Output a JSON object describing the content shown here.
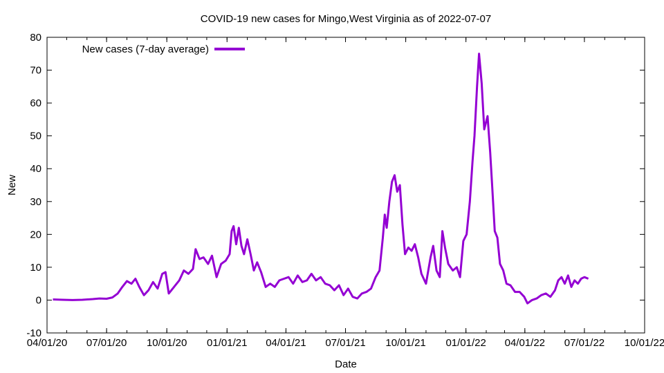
{
  "chart_data": {
    "type": "line",
    "title": "COVID-19 new cases for Mingo,West Virginia as of 2022-07-07",
    "xlabel": "Date",
    "ylabel": "New",
    "xlim": [
      "2020-04-01",
      "2022-10-01"
    ],
    "ylim": [
      -10,
      80
    ],
    "grid": false,
    "legend": "top-left",
    "x_ticks": [
      "04/01/20",
      "07/01/20",
      "10/01/20",
      "01/01/21",
      "04/01/21",
      "07/01/21",
      "10/01/21",
      "01/01/22",
      "04/01/22",
      "07/01/22",
      "10/01/22"
    ],
    "x_tick_dates": [
      "2020-04-01",
      "2020-07-01",
      "2020-10-01",
      "2021-01-01",
      "2021-04-01",
      "2021-07-01",
      "2021-10-01",
      "2022-01-01",
      "2022-04-01",
      "2022-07-01",
      "2022-10-01"
    ],
    "y_ticks": [
      -10,
      0,
      10,
      20,
      30,
      40,
      50,
      60,
      70,
      80
    ],
    "series": [
      {
        "name": "New cases (7-day average)",
        "color": "#9400d3",
        "points": [
          [
            "2020-04-10",
            0.2
          ],
          [
            "2020-04-25",
            0.1
          ],
          [
            "2020-05-10",
            0.0
          ],
          [
            "2020-05-25",
            0.1
          ],
          [
            "2020-06-10",
            0.3
          ],
          [
            "2020-06-20",
            0.5
          ],
          [
            "2020-07-01",
            0.4
          ],
          [
            "2020-07-10",
            0.8
          ],
          [
            "2020-07-18",
            2.0
          ],
          [
            "2020-07-25",
            4.0
          ],
          [
            "2020-08-01",
            5.8
          ],
          [
            "2020-08-08",
            5.0
          ],
          [
            "2020-08-14",
            6.5
          ],
          [
            "2020-08-20",
            4.0
          ],
          [
            "2020-08-27",
            1.5
          ],
          [
            "2020-09-03",
            3.0
          ],
          [
            "2020-09-10",
            5.5
          ],
          [
            "2020-09-17",
            3.5
          ],
          [
            "2020-09-24",
            8.0
          ],
          [
            "2020-09-29",
            8.5
          ],
          [
            "2020-10-04",
            2.0
          ],
          [
            "2020-10-12",
            4.0
          ],
          [
            "2020-10-20",
            6.0
          ],
          [
            "2020-10-27",
            9.0
          ],
          [
            "2020-11-03",
            8.0
          ],
          [
            "2020-11-10",
            9.5
          ],
          [
            "2020-11-14",
            15.5
          ],
          [
            "2020-11-20",
            12.5
          ],
          [
            "2020-11-26",
            13.0
          ],
          [
            "2020-12-03",
            11.0
          ],
          [
            "2020-12-09",
            13.5
          ],
          [
            "2020-12-16",
            7.0
          ],
          [
            "2020-12-23",
            11.0
          ],
          [
            "2020-12-30",
            12.0
          ],
          [
            "2021-01-05",
            14.0
          ],
          [
            "2021-01-08",
            21.0
          ],
          [
            "2021-01-11",
            22.5
          ],
          [
            "2021-01-15",
            17.0
          ],
          [
            "2021-01-19",
            22.0
          ],
          [
            "2021-01-23",
            16.5
          ],
          [
            "2021-01-27",
            14.0
          ],
          [
            "2021-02-01",
            18.5
          ],
          [
            "2021-02-06",
            14.0
          ],
          [
            "2021-02-11",
            9.0
          ],
          [
            "2021-02-16",
            11.5
          ],
          [
            "2021-02-22",
            8.5
          ],
          [
            "2021-03-01",
            4.0
          ],
          [
            "2021-03-08",
            5.0
          ],
          [
            "2021-03-15",
            4.0
          ],
          [
            "2021-03-22",
            6.0
          ],
          [
            "2021-03-29",
            6.5
          ],
          [
            "2021-04-05",
            7.0
          ],
          [
            "2021-04-12",
            5.0
          ],
          [
            "2021-04-19",
            7.5
          ],
          [
            "2021-04-26",
            5.5
          ],
          [
            "2021-05-03",
            6.0
          ],
          [
            "2021-05-10",
            8.0
          ],
          [
            "2021-05-17",
            6.0
          ],
          [
            "2021-05-24",
            7.0
          ],
          [
            "2021-05-31",
            5.0
          ],
          [
            "2021-06-07",
            4.5
          ],
          [
            "2021-06-14",
            3.0
          ],
          [
            "2021-06-21",
            4.5
          ],
          [
            "2021-06-28",
            1.5
          ],
          [
            "2021-07-05",
            3.5
          ],
          [
            "2021-07-12",
            1.0
          ],
          [
            "2021-07-19",
            0.5
          ],
          [
            "2021-07-26",
            2.0
          ],
          [
            "2021-08-02",
            2.5
          ],
          [
            "2021-08-09",
            3.5
          ],
          [
            "2021-08-16",
            7.0
          ],
          [
            "2021-08-22",
            9.0
          ],
          [
            "2021-08-27",
            19.0
          ],
          [
            "2021-08-30",
            26.0
          ],
          [
            "2021-09-02",
            22.0
          ],
          [
            "2021-09-06",
            30.0
          ],
          [
            "2021-09-10",
            36.0
          ],
          [
            "2021-09-14",
            38.0
          ],
          [
            "2021-09-18",
            33.0
          ],
          [
            "2021-09-22",
            35.0
          ],
          [
            "2021-09-26",
            23.0
          ],
          [
            "2021-09-30",
            14.0
          ],
          [
            "2021-10-05",
            16.0
          ],
          [
            "2021-10-10",
            15.0
          ],
          [
            "2021-10-15",
            17.0
          ],
          [
            "2021-10-20",
            13.0
          ],
          [
            "2021-10-25",
            8.0
          ],
          [
            "2021-11-01",
            5.0
          ],
          [
            "2021-11-08",
            13.0
          ],
          [
            "2021-11-12",
            16.5
          ],
          [
            "2021-11-17",
            9.0
          ],
          [
            "2021-11-22",
            7.0
          ],
          [
            "2021-11-26",
            21.0
          ],
          [
            "2021-11-30",
            16.0
          ],
          [
            "2021-12-05",
            11.0
          ],
          [
            "2021-12-12",
            9.0
          ],
          [
            "2021-12-18",
            10.0
          ],
          [
            "2021-12-23",
            7.0
          ],
          [
            "2021-12-28",
            18.0
          ],
          [
            "2022-01-02",
            20.0
          ],
          [
            "2022-01-07",
            30.0
          ],
          [
            "2022-01-11",
            42.0
          ],
          [
            "2022-01-14",
            50.0
          ],
          [
            "2022-01-18",
            65.0
          ],
          [
            "2022-01-21",
            75.0
          ],
          [
            "2022-01-25",
            66.0
          ],
          [
            "2022-01-29",
            52.0
          ],
          [
            "2022-02-03",
            56.0
          ],
          [
            "2022-02-07",
            45.0
          ],
          [
            "2022-02-10",
            35.0
          ],
          [
            "2022-02-14",
            21.0
          ],
          [
            "2022-02-18",
            19.0
          ],
          [
            "2022-02-22",
            11.0
          ],
          [
            "2022-02-27",
            9.0
          ],
          [
            "2022-03-04",
            5.0
          ],
          [
            "2022-03-10",
            4.5
          ],
          [
            "2022-03-17",
            2.5
          ],
          [
            "2022-03-24",
            2.5
          ],
          [
            "2022-03-31",
            1.0
          ],
          [
            "2022-04-05",
            -1.0
          ],
          [
            "2022-04-12",
            0.0
          ],
          [
            "2022-04-19",
            0.5
          ],
          [
            "2022-04-26",
            1.5
          ],
          [
            "2022-05-03",
            2.0
          ],
          [
            "2022-05-10",
            1.0
          ],
          [
            "2022-05-17",
            3.0
          ],
          [
            "2022-05-22",
            6.0
          ],
          [
            "2022-05-27",
            7.0
          ],
          [
            "2022-06-01",
            5.0
          ],
          [
            "2022-06-06",
            7.5
          ],
          [
            "2022-06-11",
            4.0
          ],
          [
            "2022-06-16",
            6.0
          ],
          [
            "2022-06-21",
            5.0
          ],
          [
            "2022-06-26",
            6.5
          ],
          [
            "2022-07-01",
            7.0
          ],
          [
            "2022-07-07",
            6.5
          ]
        ]
      }
    ]
  }
}
